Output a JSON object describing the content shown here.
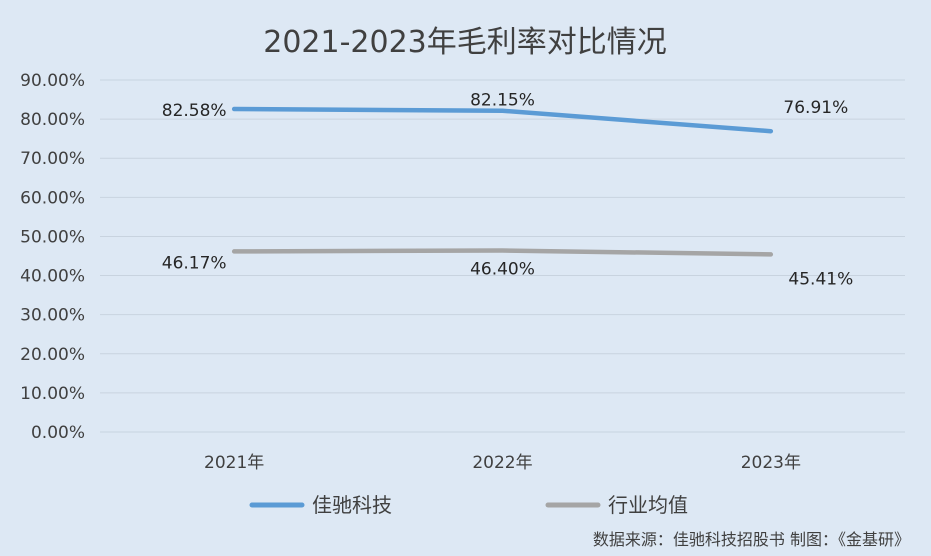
{
  "chart_data": {
    "type": "line",
    "title": "2021-2023年毛利率对比情况",
    "categories": [
      "2021年",
      "2022年",
      "2023年"
    ],
    "series": [
      {
        "name": "佳驰科技",
        "values": [
          82.58,
          82.15,
          76.91
        ],
        "labels": [
          "82.58%",
          "82.15%",
          "76.91%"
        ],
        "color": "#5b9bd5"
      },
      {
        "name": "行业均值",
        "values": [
          46.17,
          46.4,
          45.41
        ],
        "labels": [
          "46.17%",
          "46.40%",
          "45.41%"
        ],
        "color": "#a5a5a5"
      }
    ],
    "yticks": [
      "0.00%",
      "10.00%",
      "20.00%",
      "30.00%",
      "40.00%",
      "50.00%",
      "60.00%",
      "70.00%",
      "80.00%",
      "90.00%"
    ],
    "ylim": [
      0,
      90
    ],
    "xlabel": "",
    "ylabel": "",
    "grid": true,
    "legend": "bottom-center"
  },
  "source_note": "数据来源：佳驰科技招股书   制图：《金基研》"
}
